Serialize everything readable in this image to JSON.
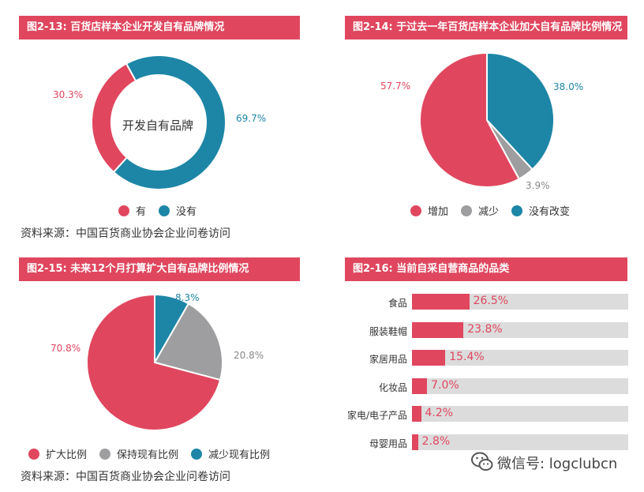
{
  "colors": {
    "red": "#e0475f",
    "teal": "#1d86a6",
    "gray": "#9e9ea0",
    "bar_bg": "#dcdcdc"
  },
  "source_text": "资料来源：中国百货商业协会企业问卷访问",
  "watermark": {
    "text": "微信号: logclubcn",
    "icon": "wechat-icon"
  },
  "chart_data": [
    {
      "type": "pie",
      "variant": "donut",
      "title": "图2-13: 百货店样本企业开发自有品牌情况",
      "center_label": "开发自有品牌",
      "slices": [
        {
          "name": "有",
          "value": 30.3,
          "label": "30.3%",
          "color": "#e0475f"
        },
        {
          "name": "没有",
          "value": 69.7,
          "label": "69.7%",
          "color": "#1d86a6"
        }
      ],
      "legend": [
        "有",
        "没有"
      ],
      "legend_position": "bottom"
    },
    {
      "type": "pie",
      "title": "图2-14: 于过去一年百货店样本企业加大自有品牌比例情况",
      "slices": [
        {
          "name": "增加",
          "value": 57.7,
          "label": "57.7%",
          "color": "#e0475f"
        },
        {
          "name": "减少",
          "value": 3.9,
          "label": "3.9%",
          "color": "#9e9ea0"
        },
        {
          "name": "没有改变",
          "value": 38.0,
          "label": "38.0%",
          "color": "#1d86a6"
        }
      ],
      "legend": [
        "增加",
        "减少",
        "没有改变"
      ],
      "legend_position": "bottom"
    },
    {
      "type": "pie",
      "title": "图2-15: 未来12个月打算扩大自有品牌比例情况",
      "slices": [
        {
          "name": "扩大比例",
          "value": 70.8,
          "label": "70.8%",
          "color": "#e0475f"
        },
        {
          "name": "保持现有比例",
          "value": 20.8,
          "label": "20.8%",
          "color": "#9e9ea0"
        },
        {
          "name": "减少现有比例",
          "value": 8.3,
          "label": "8.3%",
          "color": "#1d86a6"
        }
      ],
      "legend": [
        "扩大比例",
        "保持现有比例",
        "减少现有比例"
      ],
      "legend_position": "bottom"
    },
    {
      "type": "bar",
      "orientation": "horizontal",
      "title": "图2-16: 当前自采自营商品的品类",
      "categories": [
        "食品",
        "服装鞋帽",
        "家居用品",
        "化妆品",
        "家电/电子产品",
        "母婴用品"
      ],
      "values": [
        26.5,
        23.8,
        15.4,
        7.0,
        4.2,
        2.8
      ],
      "value_labels": [
        "26.5%",
        "23.8%",
        "15.4%",
        "7.0%",
        "4.2%",
        "2.8%"
      ],
      "xlim": [
        0,
        100
      ],
      "color": "#e0475f",
      "track_color": "#dcdcdc"
    }
  ]
}
